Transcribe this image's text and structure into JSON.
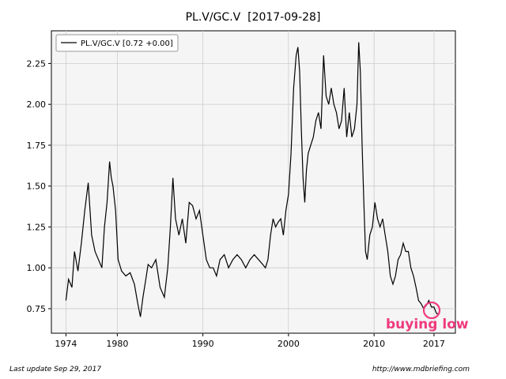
{
  "title": "PL.V/GC.V  [2017-09-28]",
  "footer": {
    "left": "Last update Sep 29, 2017",
    "right": "http://www.mdbriefing.com"
  },
  "annotation": {
    "text": "buying low",
    "color": "#ef3a7d"
  },
  "colors": {
    "plot_bg": "#f5f5f5",
    "line": "#000000",
    "grid": "#cccccc"
  },
  "chart_data": {
    "type": "line",
    "title": "PL.V/GC.V  [2017-09-28]",
    "xlabel": "",
    "ylabel": "",
    "xlim": [
      1972.3,
      2019.5
    ],
    "ylim": [
      0.6,
      2.45
    ],
    "x_ticks": [
      1974,
      1980,
      1990,
      2000,
      2010,
      2017
    ],
    "y_ticks": [
      0.75,
      1.0,
      1.25,
      1.5,
      1.75,
      2.0,
      2.25
    ],
    "y_tick_labels": [
      "0.75",
      "1.00",
      "1.25",
      "1.50",
      "1.75",
      "2.00",
      "2.25"
    ],
    "grid": true,
    "legend": {
      "position": "top-left",
      "entries": [
        "PL.V/GC.V [0.72 +0.00]"
      ]
    },
    "series": [
      {
        "name": "PL.V/GC.V [0.72 +0.00]",
        "x": [
          1974.0,
          1974.3,
          1974.7,
          1975.0,
          1975.4,
          1975.8,
          1976.2,
          1976.6,
          1977.0,
          1977.4,
          1977.8,
          1978.2,
          1978.5,
          1978.8,
          1979.1,
          1979.3,
          1979.5,
          1979.8,
          1980.1,
          1980.5,
          1981.0,
          1981.5,
          1982.0,
          1982.4,
          1982.7,
          1983.0,
          1983.3,
          1983.6,
          1984.0,
          1984.5,
          1985.0,
          1985.5,
          1985.9,
          1986.2,
          1986.5,
          1986.8,
          1987.2,
          1987.6,
          1988.0,
          1988.4,
          1988.8,
          1989.2,
          1989.6,
          1990.0,
          1990.4,
          1990.8,
          1991.2,
          1991.6,
          1992.0,
          1992.5,
          1993.0,
          1993.5,
          1994.0,
          1994.5,
          1995.0,
          1995.5,
          1996.0,
          1996.5,
          1997.0,
          1997.3,
          1997.6,
          1997.9,
          1998.2,
          1998.5,
          1998.8,
          1999.1,
          1999.4,
          1999.7,
          2000.0,
          2000.3,
          2000.6,
          2000.9,
          2001.1,
          2001.3,
          2001.5,
          2001.7,
          2001.9,
          2002.1,
          2002.3,
          2002.6,
          2002.9,
          2003.2,
          2003.5,
          2003.8,
          2004.1,
          2004.4,
          2004.7,
          2005.0,
          2005.3,
          2005.6,
          2005.9,
          2006.2,
          2006.5,
          2006.8,
          2007.1,
          2007.4,
          2007.7,
          2008.0,
          2008.2,
          2008.4,
          2008.6,
          2008.8,
          2009.0,
          2009.2,
          2009.5,
          2009.8,
          2010.1,
          2010.4,
          2010.7,
          2011.0,
          2011.3,
          2011.6,
          2011.9,
          2012.2,
          2012.5,
          2012.8,
          2013.1,
          2013.4,
          2013.7,
          2014.0,
          2014.3,
          2014.6,
          2014.9,
          2015.2,
          2015.5,
          2015.8,
          2016.1,
          2016.4,
          2016.7,
          2017.0,
          2017.3,
          2017.6
        ],
        "y": [
          0.8,
          0.93,
          0.88,
          1.1,
          0.98,
          1.15,
          1.35,
          1.52,
          1.2,
          1.1,
          1.05,
          1.0,
          1.25,
          1.4,
          1.65,
          1.55,
          1.5,
          1.35,
          1.05,
          0.98,
          0.95,
          0.97,
          0.9,
          0.78,
          0.7,
          0.82,
          0.92,
          1.02,
          1.0,
          1.05,
          0.88,
          0.82,
          1.0,
          1.25,
          1.55,
          1.3,
          1.2,
          1.3,
          1.15,
          1.4,
          1.38,
          1.3,
          1.35,
          1.2,
          1.05,
          1.0,
          1.0,
          0.95,
          1.05,
          1.08,
          1.0,
          1.05,
          1.08,
          1.05,
          1.0,
          1.05,
          1.08,
          1.05,
          1.02,
          1.0,
          1.05,
          1.2,
          1.3,
          1.25,
          1.28,
          1.3,
          1.2,
          1.35,
          1.45,
          1.7,
          2.1,
          2.3,
          2.35,
          2.2,
          1.85,
          1.55,
          1.4,
          1.6,
          1.7,
          1.75,
          1.8,
          1.9,
          1.95,
          1.85,
          2.3,
          2.05,
          2.0,
          2.1,
          2.0,
          1.95,
          1.85,
          1.9,
          2.1,
          1.8,
          1.95,
          1.8,
          1.85,
          2.0,
          2.38,
          2.2,
          1.75,
          1.4,
          1.1,
          1.05,
          1.2,
          1.25,
          1.4,
          1.3,
          1.25,
          1.3,
          1.2,
          1.1,
          0.95,
          0.9,
          0.95,
          1.05,
          1.08,
          1.15,
          1.1,
          1.1,
          1.0,
          0.95,
          0.88,
          0.8,
          0.78,
          0.75,
          0.77,
          0.8,
          0.76,
          0.76,
          0.72,
          0.72
        ]
      }
    ]
  }
}
